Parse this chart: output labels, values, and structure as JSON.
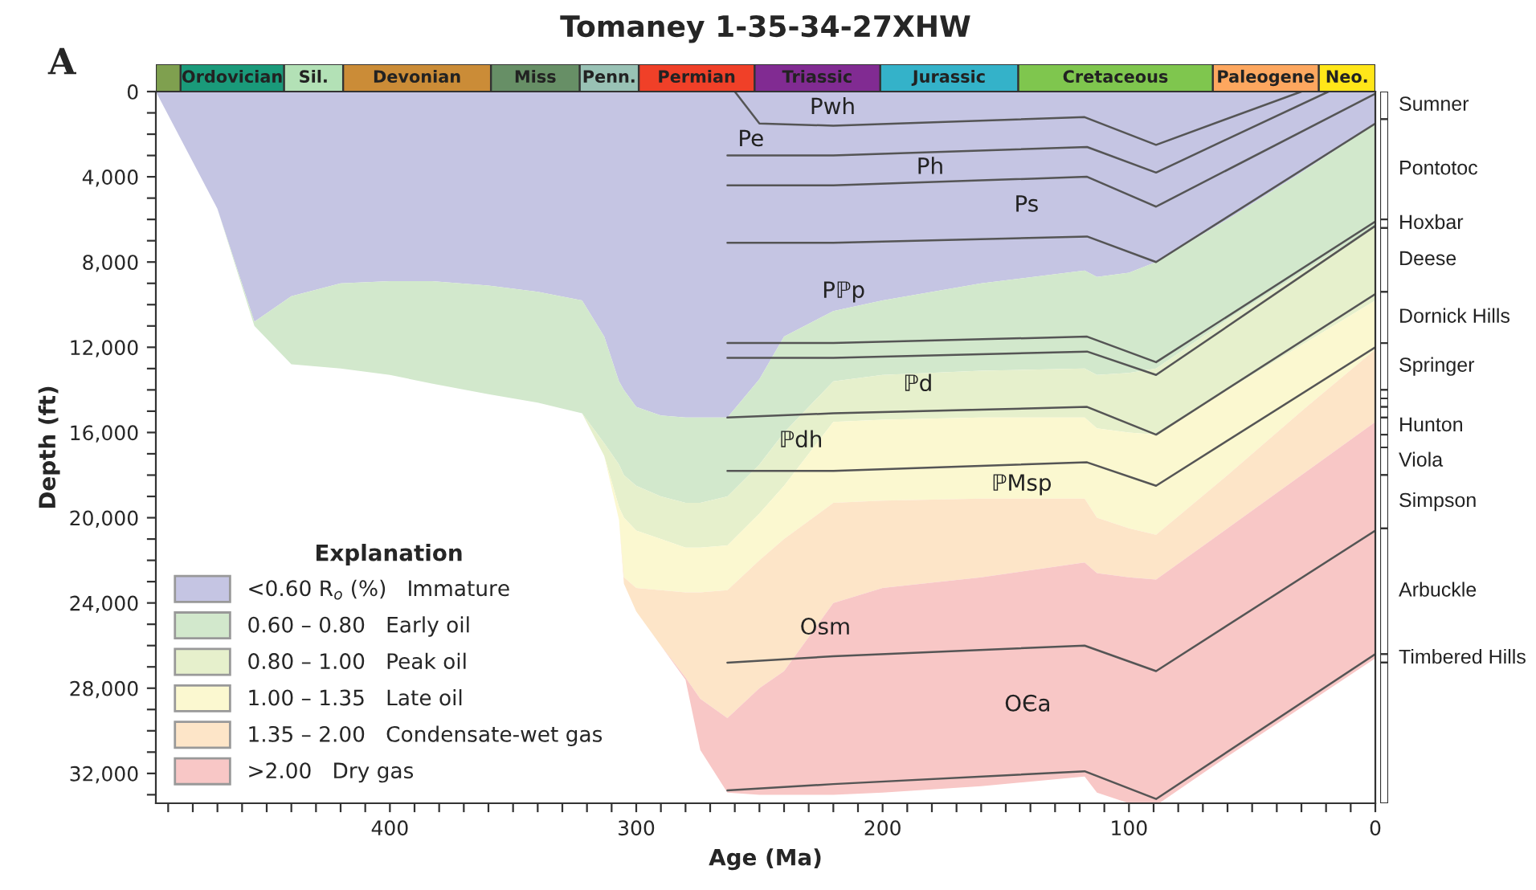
{
  "chart_data": [
    {
      "type": "area",
      "xlabel": "Age (Ma)",
      "ylabel": "Depth (ft)",
      "legend_title": "Explanation",
      "legend": "bottom left",
      "stacked": true,
      "x": [
        495,
        470,
        455,
        440,
        420,
        400,
        383,
        360,
        340,
        322,
        313,
        307,
        305,
        300,
        290,
        280,
        274,
        263,
        250,
        240,
        220,
        200,
        160,
        118,
        113,
        100,
        89,
        60,
        30,
        0
      ],
      "series": [
        {
          "name": "<0.60 R$_{o}$ (%)   Immature",
          "color": "#c5c5e3",
          "values": [
            0,
            5500,
            10800,
            9600,
            9000,
            8900,
            8900,
            9100,
            9400,
            9800,
            11500,
            13600,
            14000,
            14800,
            15200,
            15300,
            15300,
            15300,
            13500,
            11500,
            10300,
            9800,
            9000,
            8400,
            8700,
            8500,
            8000,
            6000,
            3800,
            1500
          ]
        },
        {
          "name": "0.60 – 0.80   Early oil",
          "color": "#d2e8cc",
          "values": [
            0,
            0,
            200,
            3200,
            4000,
            4400,
            4800,
            5100,
            5200,
            5300,
            5000,
            3900,
            4000,
            3700,
            3800,
            4000,
            4000,
            3700,
            4000,
            4500,
            3300,
            3500,
            4100,
            4600,
            4600,
            4700,
            5000,
            4700,
            4700,
            4800
          ]
        },
        {
          "name": "0.80 – 1.00   Peak oil",
          "color": "#e6f0cc",
          "values": [
            0,
            0,
            0,
            0,
            0,
            0,
            0,
            0,
            0,
            0,
            600,
            2000,
            2000,
            2100,
            2000,
            2100,
            2100,
            2300,
            2300,
            2500,
            1900,
            2100,
            2200,
            2300,
            2500,
            2800,
            3100,
            3300,
            3400,
            3500
          ]
        },
        {
          "name": "1.00 – 1.35   Late oil",
          "color": "#fbf8d0",
          "values": [
            0,
            0,
            0,
            0,
            0,
            0,
            0,
            0,
            0,
            0,
            0,
            600,
            2800,
            2700,
            2400,
            2100,
            2100,
            2100,
            2200,
            2500,
            3800,
            3800,
            3800,
            3800,
            4200,
            4500,
            4700,
            4000,
            3100,
            2300
          ]
        },
        {
          "name": "1.35 – 2.00   Condensate-wet gas",
          "color": "#fde5c8",
          "values": [
            0,
            0,
            0,
            0,
            0,
            0,
            0,
            0,
            0,
            0,
            0,
            0,
            300,
            1100,
            2600,
            4000,
            5000,
            6000,
            6000,
            6200,
            4700,
            4100,
            3700,
            3000,
            2600,
            2300,
            2100,
            2500,
            3000,
            3400
          ]
        },
        {
          "name": ">2.00   Dry gas",
          "color": "#f8c7c6",
          "values": [
            0,
            0,
            0,
            0,
            0,
            0,
            0,
            0,
            0,
            0,
            0,
            0,
            0,
            0,
            0,
            100,
            2400,
            3500,
            5000,
            5800,
            9000,
            9600,
            9800,
            10050,
            10300,
            10600,
            10600,
            10700,
            10900,
            11100
          ]
        },
        {
          "type": "line",
          "color": "#555555",
          "x": [
            260,
            250,
            220,
            118,
            89,
            30
          ],
          "values": [
            0,
            1500,
            1600,
            1200,
            2500,
            0
          ]
        },
        {
          "type": "line",
          "color": "#555555",
          "x": [
            263,
            220,
            117,
            89,
            19
          ],
          "values": [
            3000,
            3000,
            2600,
            3800,
            0
          ]
        },
        {
          "type": "line",
          "color": "#555555",
          "x": [
            263,
            220,
            117,
            89,
            0
          ],
          "values": [
            4400,
            4400,
            4000,
            5400,
            100
          ]
        },
        {
          "type": "line",
          "color": "#555555",
          "x": [
            263,
            220,
            117,
            89,
            0
          ],
          "values": [
            7100,
            7100,
            6800,
            8000,
            1500
          ]
        },
        {
          "type": "line",
          "color": "#555555",
          "x": [
            263,
            220,
            117,
            89,
            0
          ],
          "values": [
            11800,
            11800,
            11500,
            12700,
            6100
          ]
        },
        {
          "type": "line",
          "color": "#555555",
          "x": [
            263,
            220,
            117,
            89,
            0
          ],
          "values": [
            12500,
            12500,
            12200,
            13300,
            6300
          ]
        },
        {
          "type": "line",
          "color": "#555555",
          "x": [
            263,
            220,
            117,
            89,
            0
          ],
          "values": [
            15300,
            15100,
            14800,
            16100,
            9500
          ]
        },
        {
          "type": "line",
          "color": "#555555",
          "x": [
            263,
            220,
            117,
            89,
            0
          ],
          "values": [
            17800,
            17800,
            17400,
            18500,
            12000
          ]
        },
        {
          "type": "line",
          "color": "#555555",
          "x": [
            263,
            220,
            118,
            89,
            0
          ],
          "values": [
            26800,
            26500,
            26000,
            27200,
            20600
          ]
        },
        {
          "type": "line",
          "color": "#555555",
          "x": [
            263,
            220,
            118,
            89,
            0
          ],
          "values": [
            32800,
            32500,
            31900,
            33200,
            26400
          ]
        }
      ],
      "xlim": [
        495,
        0
      ],
      "xticks": [
        {
          "value": 490,
          "label": null
        },
        {
          "value": 480,
          "label": null
        },
        {
          "value": 470,
          "label": null
        },
        {
          "value": 460,
          "label": null
        },
        {
          "value": 450,
          "label": null
        },
        {
          "value": 440,
          "label": null
        },
        {
          "value": 430,
          "label": null
        },
        {
          "value": 420,
          "label": null
        },
        {
          "value": 410,
          "label": null
        },
        400,
        {
          "value": 390,
          "label": null
        },
        {
          "value": 380,
          "label": null
        },
        {
          "value": 370,
          "label": null
        },
        {
          "value": 360,
          "label": null
        },
        {
          "value": 350,
          "label": null
        },
        {
          "value": 340,
          "label": null
        },
        {
          "value": 330,
          "label": null
        },
        {
          "value": 320,
          "label": null
        },
        {
          "value": 310,
          "label": null
        },
        300,
        {
          "value": 290,
          "label": null
        },
        {
          "value": 280,
          "label": null
        },
        {
          "value": 270,
          "label": null
        },
        {
          "value": 260,
          "label": null
        },
        {
          "value": 250,
          "label": null
        },
        {
          "value": 240,
          "label": null
        },
        {
          "value": 230,
          "label": null
        },
        {
          "value": 220,
          "label": null
        },
        {
          "value": 210,
          "label": null
        },
        200,
        {
          "value": 190,
          "label": null
        },
        {
          "value": 180,
          "label": null
        },
        {
          "value": 170,
          "label": null
        },
        {
          "value": 160,
          "label": null
        },
        {
          "value": 150,
          "label": null
        },
        {
          "value": 140,
          "label": null
        },
        {
          "value": 130,
          "label": null
        },
        {
          "value": 120,
          "label": null
        },
        {
          "value": 110,
          "label": null
        },
        100,
        {
          "value": 90,
          "label": null
        },
        {
          "value": 80,
          "label": null
        },
        {
          "value": 70,
          "label": null
        },
        {
          "value": 60,
          "label": null
        },
        {
          "value": 50,
          "label": null
        },
        {
          "value": 40,
          "label": null
        },
        {
          "value": 30,
          "label": null
        },
        {
          "value": 20,
          "label": null
        },
        {
          "value": 10,
          "label": null
        },
        0
      ],
      "ylim": [
        33400,
        0
      ],
      "yticks": [
        0,
        {
          "value": 1000,
          "label": null
        },
        {
          "value": 2000,
          "label": null
        },
        {
          "value": 3000,
          "label": null
        },
        {
          "value": 4000,
          "label": "4,000"
        },
        {
          "value": 5000,
          "label": null
        },
        {
          "value": 6000,
          "label": null
        },
        {
          "value": 7000,
          "label": null
        },
        {
          "value": 8000,
          "label": "8,000"
        },
        {
          "value": 9000,
          "label": null
        },
        {
          "value": 10000,
          "label": null
        },
        {
          "value": 11000,
          "label": null
        },
        {
          "value": 12000,
          "label": "12,000"
        },
        {
          "value": 13000,
          "label": null
        },
        {
          "value": 14000,
          "label": null
        },
        {
          "value": 15000,
          "label": null
        },
        {
          "value": 16000,
          "label": "16,000"
        },
        {
          "value": 17000,
          "label": null
        },
        {
          "value": 18000,
          "label": null
        },
        {
          "value": 19000,
          "label": null
        },
        {
          "value": 20000,
          "label": "20,000"
        },
        {
          "value": 21000,
          "label": null
        },
        {
          "value": 22000,
          "label": null
        },
        {
          "value": 23000,
          "label": null
        },
        {
          "value": 24000,
          "label": "24,000"
        },
        {
          "value": 25000,
          "label": null
        },
        {
          "value": 26000,
          "label": null
        },
        {
          "value": 27000,
          "label": null
        },
        {
          "value": 28000,
          "label": "28,000"
        },
        {
          "value": 29000,
          "label": null
        },
        {
          "value": 30000,
          "label": null
        },
        {
          "value": 31000,
          "label": null
        },
        {
          "value": 32000,
          "label": "32,000"
        },
        {
          "value": 33000,
          "label": null
        }
      ],
      "annotations": [
        "A",
        "Pwh",
        "Pe",
        "Ph",
        "Ps",
        "Pℙp",
        "ℙd",
        "ℙdh",
        "ℙMsp",
        "Osm",
        "OЄa"
      ]
    },
    {
      "type": "bar",
      "title": "Tomaney 1-35-34-27XHW",
      "orientation": "horizontal",
      "stacked": true,
      "categories": [
        null
      ],
      "xlim": [
        495,
        0
      ],
      "tick_labels": false,
      "series": [
        {
          "name": "Neo.",
          "color": "#ffe619",
          "values": [
            23
          ]
        },
        {
          "name": "Paleogene",
          "color": "#fda75f",
          "values": [
            43
          ]
        },
        {
          "name": "Cretaceous",
          "color": "#7fc64e",
          "values": [
            79
          ]
        },
        {
          "name": "Jurassic",
          "color": "#34b2c9",
          "values": [
            56
          ]
        },
        {
          "name": "Triassic",
          "color": "#812b92",
          "values": [
            51
          ]
        },
        {
          "name": "Permian",
          "color": "#f04028",
          "values": [
            47
          ]
        },
        {
          "name": "Penn.",
          "color": "#99c2b5",
          "values": [
            24
          ]
        },
        {
          "name": "Miss",
          "color": "#678f66",
          "values": [
            36
          ]
        },
        {
          "name": "Devonian",
          "color": "#cb8c37",
          "values": [
            60
          ]
        },
        {
          "name": "Sil.",
          "color": "#b3e1b6",
          "values": [
            24
          ]
        },
        {
          "name": "Ordovician",
          "color": "#1a9a7a",
          "values": [
            42
          ]
        },
        {
          "color": "#7fa04f",
          "values": [
            10
          ]
        }
      ]
    },
    {
      "type": "bar",
      "stacked": true,
      "categories": [
        null
      ],
      "ylim": [
        33400,
        0
      ],
      "tick_labels": false,
      "series": [
        {
          "name": "Sumner",
          "color": "#ffffff",
          "values": [
            1300
          ]
        },
        {
          "name": "Pontotoc",
          "color": "#ffffff",
          "values": [
            4700
          ]
        },
        {
          "name": "Hoxbar",
          "color": "#ffffff",
          "values": [
            400
          ]
        },
        {
          "name": "Deese",
          "color": "#ffffff",
          "values": [
            3000
          ]
        },
        {
          "name": "Dornick Hills",
          "color": "#ffffff",
          "values": [
            2400
          ]
        },
        {
          "name": "Springer",
          "color": "#ffffff",
          "values": [
            2200
          ]
        },
        {
          "color": "#ffffff",
          "values": [
            400
          ]
        },
        {
          "color": "#ffffff",
          "values": [
            400
          ]
        },
        {
          "color": "#ffffff",
          "values": [
            500
          ]
        },
        {
          "name": "Hunton",
          "color": "#ffffff",
          "values": [
            800
          ]
        },
        {
          "color": "#ffffff",
          "values": [
            600
          ]
        },
        {
          "name": "Viola",
          "color": "#ffffff",
          "values": [
            1300
          ]
        },
        {
          "name": "Simpson",
          "color": "#ffffff",
          "values": [
            2500
          ]
        },
        {
          "name": "Arbuckle",
          "color": "#ffffff",
          "values": [
            5900
          ]
        },
        {
          "name": "Timbered Hills",
          "color": "#ffffff",
          "values": [
            400
          ]
        },
        {
          "color": "#ffffff",
          "values": [
            6600
          ]
        }
      ]
    }
  ]
}
